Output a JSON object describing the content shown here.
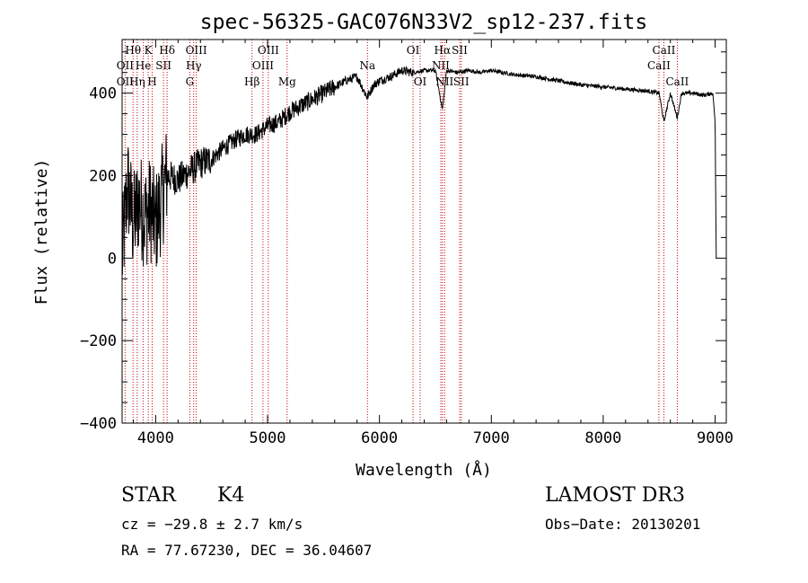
{
  "colors": {
    "axis": "#000000",
    "spectrum": "#000000",
    "line_marker": "#cc0000"
  },
  "chart_data": {
    "type": "line",
    "title": "spec-56325-GAC076N33V2_sp12-237.fits",
    "xlabel": "Wavelength (Å)",
    "ylabel": "Flux (relative)",
    "xlim": [
      3700,
      9100
    ],
    "ylim": [
      -400,
      530
    ],
    "x_ticks": [
      4000,
      5000,
      6000,
      7000,
      8000,
      9000
    ],
    "x_tick_labels": [
      "4000",
      "5000",
      "6000",
      "7000",
      "8000",
      "9000"
    ],
    "y_ticks": [
      -400,
      -200,
      0,
      200,
      400
    ],
    "y_tick_labels": [
      "−400",
      "−200",
      "0",
      "200",
      "400"
    ],
    "grid": false,
    "series": [
      {
        "name": "flux",
        "x": [
          3700,
          3750,
          3800,
          3850,
          3900,
          3950,
          4000,
          4050,
          4100,
          4200,
          4300,
          4400,
          4500,
          4600,
          4700,
          4800,
          4900,
          5000,
          5100,
          5200,
          5300,
          5400,
          5500,
          5600,
          5700,
          5800,
          5890,
          5950,
          6000,
          6100,
          6200,
          6300,
          6400,
          6500,
          6563,
          6600,
          6700,
          6800,
          6900,
          7000,
          7200,
          7400,
          7600,
          7800,
          8000,
          8200,
          8400,
          8500,
          8542,
          8600,
          8662,
          8700,
          8800,
          8900,
          8980,
          9000,
          9010
        ],
        "values": [
          0,
          180,
          80,
          140,
          100,
          120,
          80,
          140,
          200,
          190,
          210,
          230,
          240,
          265,
          285,
          300,
          300,
          320,
          330,
          355,
          370,
          385,
          400,
          415,
          430,
          440,
          390,
          420,
          430,
          440,
          455,
          450,
          455,
          455,
          360,
          455,
          450,
          455,
          450,
          455,
          445,
          440,
          430,
          420,
          415,
          410,
          405,
          400,
          330,
          400,
          340,
          400,
          400,
          395,
          400,
          330,
          0
        ]
      }
    ],
    "spectral_lines": [
      {
        "name": "Hθ",
        "wavelength": 3798,
        "row": 1
      },
      {
        "name": "OII",
        "wavelength": 3727,
        "row": 2
      },
      {
        "name": "OII",
        "wavelength": 3727,
        "row": 3
      },
      {
        "name": "He",
        "wavelength": 3889,
        "row": 2
      },
      {
        "name": "Hη",
        "wavelength": 3835,
        "row": 3
      },
      {
        "name": "K",
        "wavelength": 3934,
        "row": 1
      },
      {
        "name": "H",
        "wavelength": 3969,
        "row": 3
      },
      {
        "name": "Hδ",
        "wavelength": 4102,
        "row": 1
      },
      {
        "name": "SII",
        "wavelength": 4070,
        "row": 2
      },
      {
        "name": "OIII",
        "wavelength": 4363,
        "row": 1
      },
      {
        "name": "Hγ",
        "wavelength": 4340,
        "row": 2
      },
      {
        "name": "G",
        "wavelength": 4305,
        "row": 3
      },
      {
        "name": "Hβ",
        "wavelength": 4861,
        "row": 3
      },
      {
        "name": "OIII",
        "wavelength": 4959,
        "row": 2
      },
      {
        "name": "OIII",
        "wavelength": 5007,
        "row": 1
      },
      {
        "name": "Mg",
        "wavelength": 5175,
        "row": 3
      },
      {
        "name": "Na",
        "wavelength": 5893,
        "row": 2
      },
      {
        "name": "OI",
        "wavelength": 6300,
        "row": 1
      },
      {
        "name": "OI",
        "wavelength": 6364,
        "row": 3
      },
      {
        "name": "Hα",
        "wavelength": 6563,
        "row": 1
      },
      {
        "name": "NII",
        "wavelength": 6548,
        "row": 2
      },
      {
        "name": "NII",
        "wavelength": 6583,
        "row": 3
      },
      {
        "name": "SII",
        "wavelength": 6717,
        "row": 1
      },
      {
        "name": "SII",
        "wavelength": 6731,
        "row": 3
      },
      {
        "name": "CaII",
        "wavelength": 8498,
        "row": 2
      },
      {
        "name": "CaII",
        "wavelength": 8542,
        "row": 1
      },
      {
        "name": "CaII",
        "wavelength": 8662,
        "row": 3
      }
    ]
  },
  "info": {
    "class": "STAR",
    "subclass": "K4",
    "survey": "LAMOST DR3",
    "cz": "cz = −29.8 ± 2.7 km/s",
    "obs_date": "Obs−Date: 20130201",
    "coords": "RA =  77.67230, DEC =  36.04607"
  }
}
